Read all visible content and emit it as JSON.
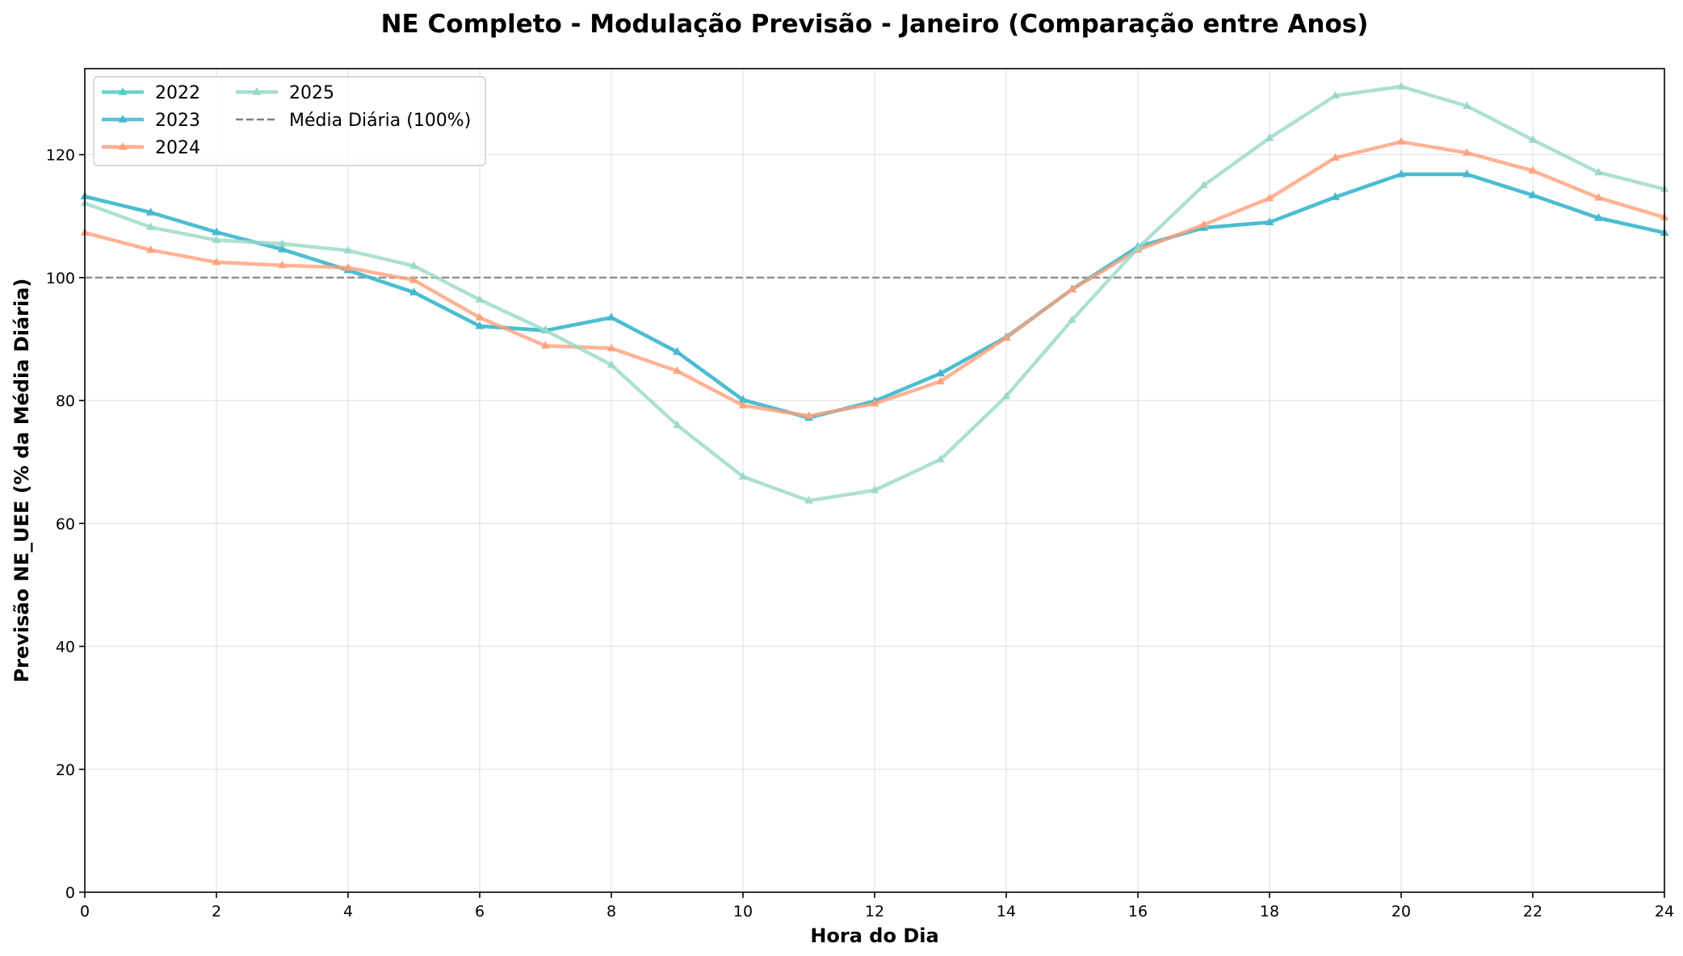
{
  "chart_data": {
    "type": "line",
    "title": "NE Completo - Modulação Previsão - Janeiro (Comparação entre Anos)",
    "xlabel": "Hora do Dia",
    "ylabel": "Previsão NE_UEE (% da Média Diária)",
    "xlim": [
      0,
      24
    ],
    "ylim": [
      0,
      134
    ],
    "xticks": [
      0,
      2,
      4,
      6,
      8,
      10,
      12,
      14,
      16,
      18,
      20,
      22,
      24
    ],
    "yticks": [
      0,
      20,
      40,
      60,
      80,
      100,
      120
    ],
    "grid": true,
    "legend_position": "top-left",
    "x": [
      0,
      1,
      2,
      3,
      4,
      5,
      6,
      7,
      8,
      9,
      10,
      11,
      12,
      13,
      14,
      15,
      16,
      17,
      18,
      19,
      20,
      21,
      22,
      23,
      24
    ],
    "series": [
      {
        "name": "2022",
        "color": "#4ecdc4",
        "values": [
          113.2,
          110.6,
          107.4,
          104.6,
          101.2,
          97.6,
          92.1,
          91.4,
          93.5,
          87.9,
          80.1,
          77.2,
          79.9,
          84.4,
          90.3,
          98.1,
          105.0,
          108.1,
          109.0,
          113.1,
          116.8,
          116.8,
          113.4,
          109.7,
          107.3
        ]
      },
      {
        "name": "2023",
        "color": "#45b7d1",
        "values": [
          113.2,
          110.6,
          107.4,
          104.6,
          101.2,
          97.6,
          92.1,
          91.4,
          93.5,
          87.9,
          80.1,
          77.2,
          79.9,
          84.4,
          90.3,
          98.1,
          105.0,
          108.1,
          109.0,
          113.1,
          116.8,
          116.8,
          113.4,
          109.7,
          107.3
        ]
      },
      {
        "name": "2024",
        "color": "#ffa07a",
        "values": [
          107.3,
          104.5,
          102.5,
          102.0,
          101.6,
          99.6,
          93.5,
          88.9,
          88.5,
          84.8,
          79.2,
          77.5,
          79.5,
          83.1,
          90.2,
          98.1,
          104.5,
          108.6,
          112.9,
          119.5,
          122.1,
          120.3,
          117.4,
          113.0,
          109.8
        ]
      },
      {
        "name": "2025",
        "color": "#98d8c8",
        "values": [
          112.1,
          108.2,
          106.1,
          105.5,
          104.4,
          101.9,
          96.4,
          91.4,
          85.8,
          76.0,
          67.6,
          63.7,
          65.4,
          70.4,
          80.7,
          93.1,
          104.8,
          115.0,
          122.7,
          129.6,
          131.1,
          127.9,
          122.4,
          117.1,
          114.4
        ]
      }
    ],
    "reference_line": {
      "name": "Média Diária (100%)",
      "value": 100,
      "color": "#808080",
      "style": "dashed"
    }
  }
}
